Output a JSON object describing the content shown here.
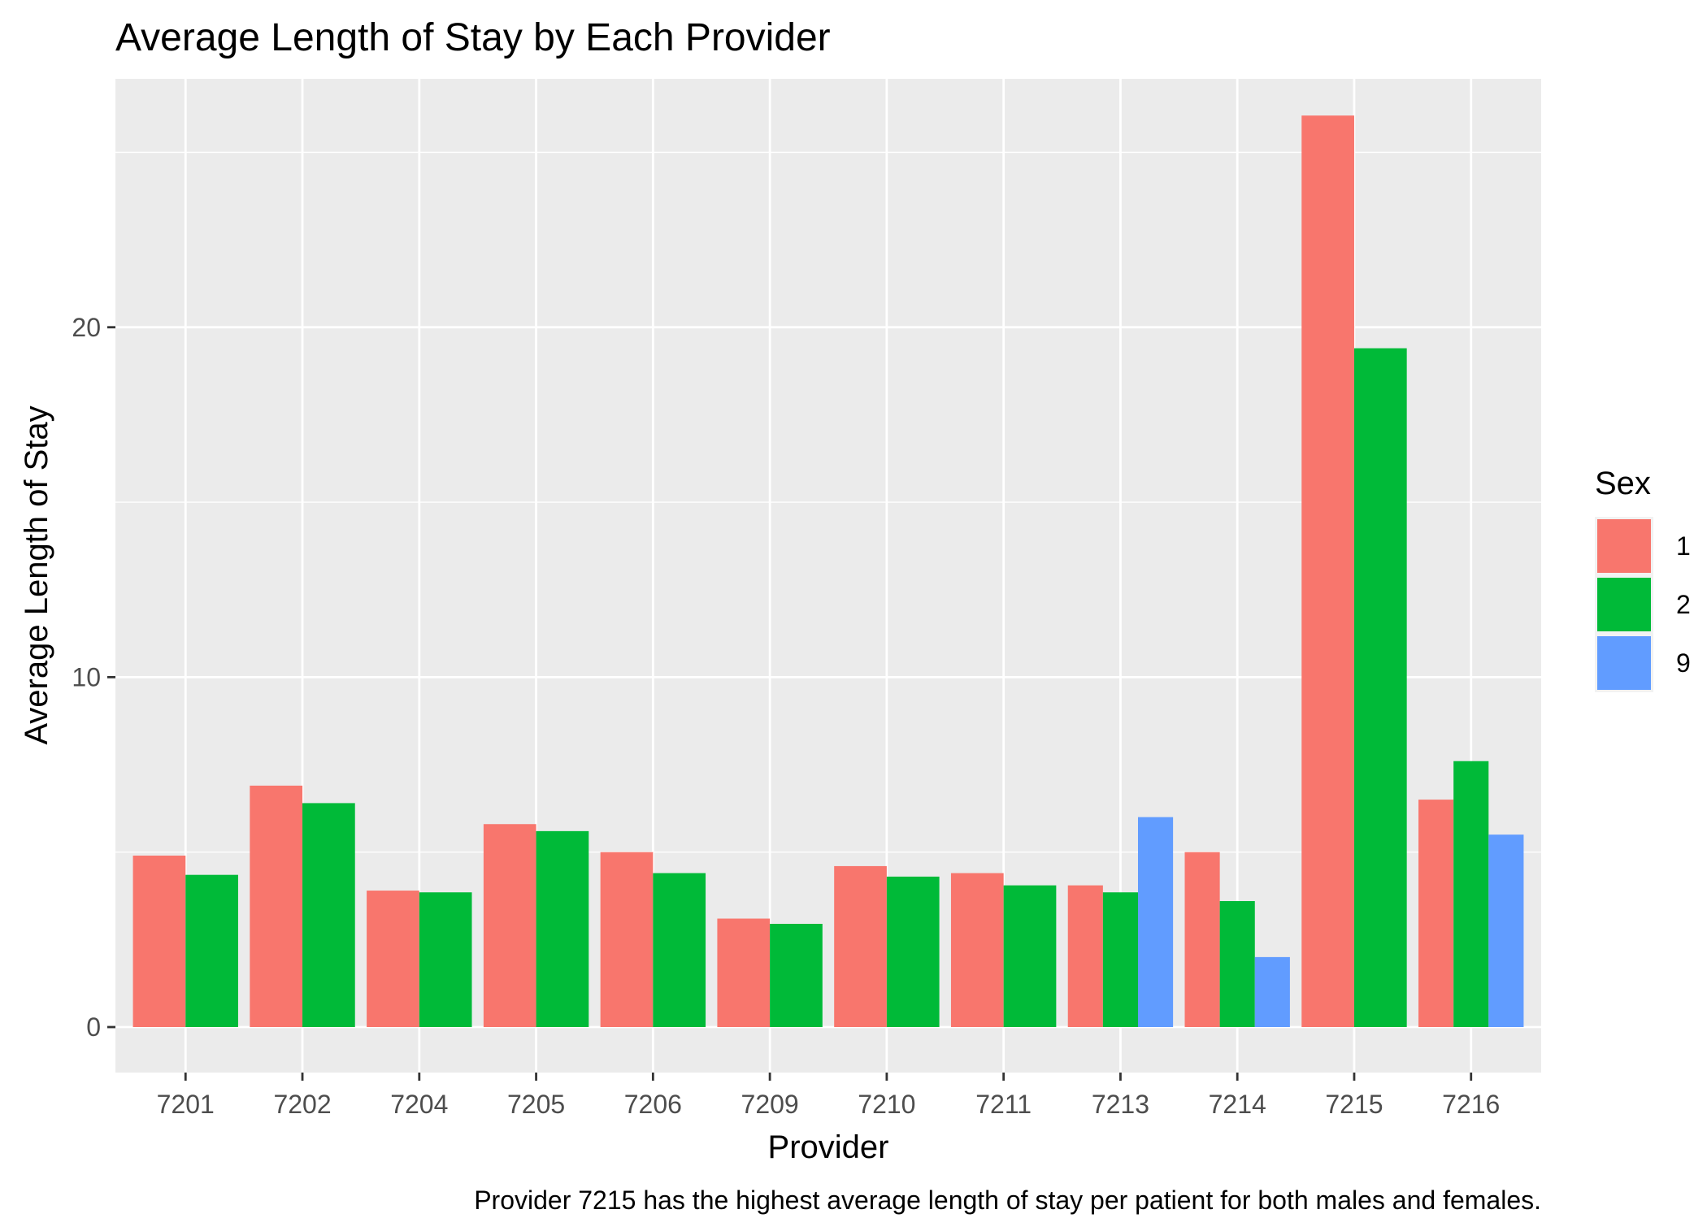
{
  "chart_data": {
    "type": "bar",
    "title": "Average Length of Stay by Each Provider",
    "xlabel": "Provider",
    "ylabel": "Average Length of Stay",
    "caption": "Provider 7215 has the highest average length of stay per patient for both males and females.",
    "categories": [
      "7201",
      "7202",
      "7204",
      "7205",
      "7206",
      "7209",
      "7210",
      "7211",
      "7213",
      "7214",
      "7215",
      "7216"
    ],
    "ylim": [
      -1.3,
      27.1
    ],
    "yticks": [
      0,
      10,
      20
    ],
    "grid": true,
    "legend": {
      "title": "Sex",
      "position": "right"
    },
    "series": [
      {
        "name": "1",
        "color": "#F8766D",
        "values": [
          4.9,
          6.9,
          3.9,
          5.8,
          5.0,
          3.1,
          4.6,
          4.4,
          4.05,
          5.0,
          26.05,
          6.5
        ]
      },
      {
        "name": "2",
        "color": "#00BA38",
        "values": [
          4.35,
          6.4,
          3.85,
          5.6,
          4.4,
          2.95,
          4.3,
          4.05,
          3.85,
          3.6,
          19.4,
          7.6
        ]
      },
      {
        "name": "9",
        "color": "#619CFF",
        "values": [
          null,
          null,
          null,
          null,
          null,
          null,
          null,
          null,
          6.0,
          2.0,
          null,
          5.5
        ]
      }
    ]
  }
}
